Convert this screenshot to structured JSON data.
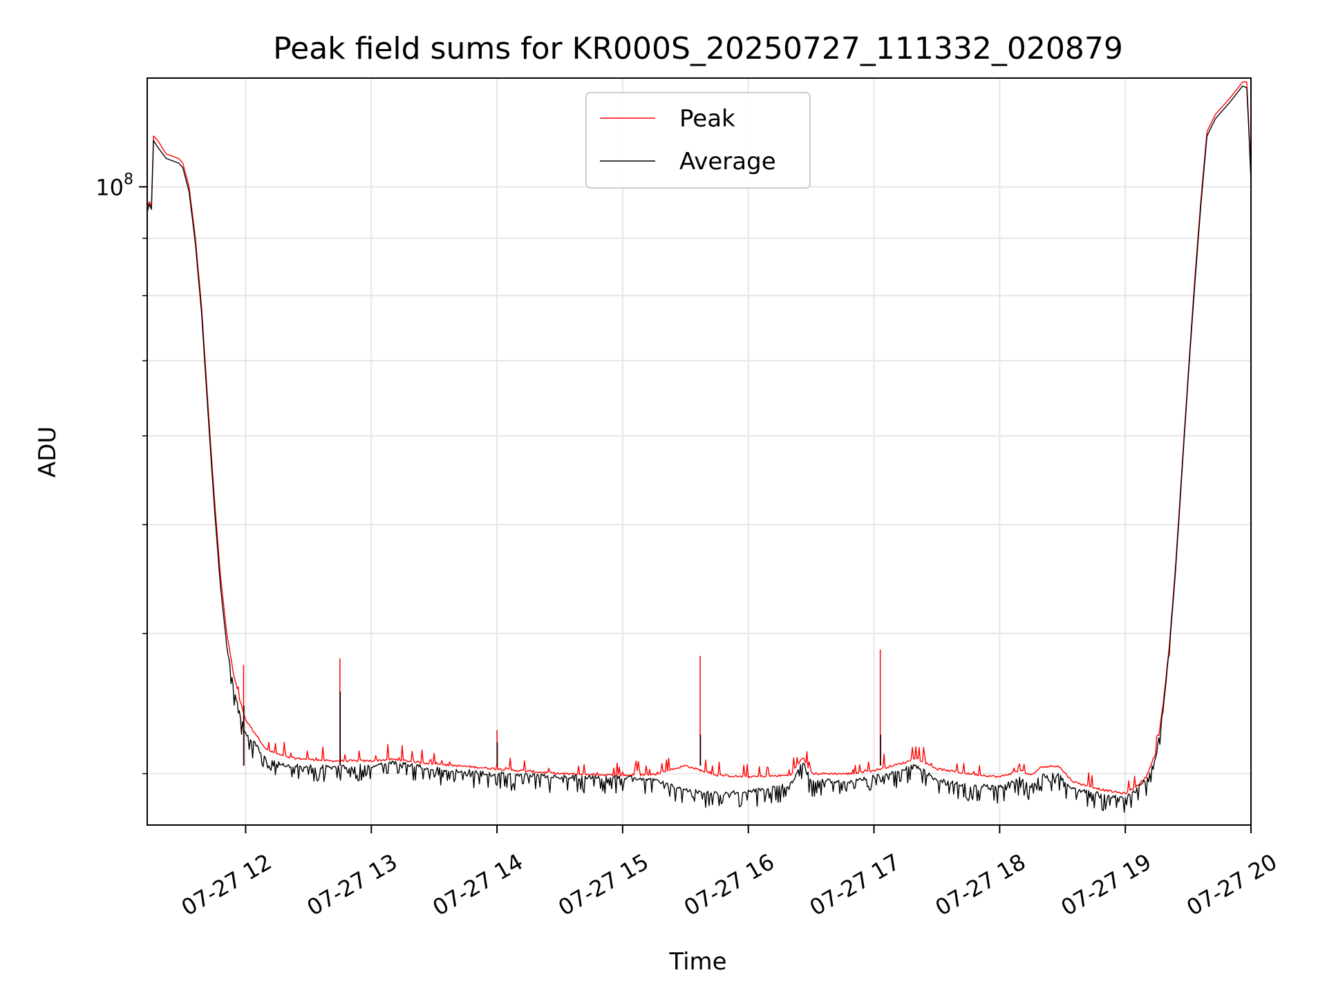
{
  "chart_data": {
    "type": "line",
    "title": "Peak field sums for KR000S_20250727_111332_020879",
    "xlabel": "Time",
    "ylabel": "ADU",
    "y_scale": "log",
    "ylim": [
      27000000,
      125000000
    ],
    "y_tick_labels": [
      {
        "value": 100000000,
        "base": "10",
        "exp": "8"
      }
    ],
    "y_minor_ticks": [
      30000000,
      40000000,
      50000000,
      60000000,
      70000000,
      80000000,
      90000000
    ],
    "xlim": [
      "2025-07-27 11:13",
      "2025-07-27 20:00"
    ],
    "x_ticks": [
      {
        "t": "2025-07-27 12:00",
        "label": "07-27 12"
      },
      {
        "t": "2025-07-27 13:00",
        "label": "07-27 13"
      },
      {
        "t": "2025-07-27 14:00",
        "label": "07-27 14"
      },
      {
        "t": "2025-07-27 15:00",
        "label": "07-27 15"
      },
      {
        "t": "2025-07-27 16:00",
        "label": "07-27 16"
      },
      {
        "t": "2025-07-27 17:00",
        "label": "07-27 17"
      },
      {
        "t": "2025-07-27 18:00",
        "label": "07-27 18"
      },
      {
        "t": "2025-07-27 19:00",
        "label": "07-27 19"
      },
      {
        "t": "2025-07-27 20:00",
        "label": "07-27 20"
      }
    ],
    "grid": true,
    "legend_position": "top-center",
    "series": [
      {
        "name": "Peak",
        "color": "#ff0000",
        "points": [
          [
            "2025-07-27 11:13",
            96000000
          ],
          [
            "2025-07-27 11:14",
            97000000
          ],
          [
            "2025-07-27 11:15",
            96000000
          ],
          [
            "2025-07-27 11:16",
            111000000
          ],
          [
            "2025-07-27 11:18",
            110000000
          ],
          [
            "2025-07-27 11:22",
            107000000
          ],
          [
            "2025-07-27 11:28",
            106000000
          ],
          [
            "2025-07-27 11:30",
            105000000
          ],
          [
            "2025-07-27 11:33",
            100000000
          ],
          [
            "2025-07-27 11:36",
            90000000
          ],
          [
            "2025-07-27 11:39",
            78000000
          ],
          [
            "2025-07-27 11:42",
            64000000
          ],
          [
            "2025-07-27 11:45",
            53000000
          ],
          [
            "2025-07-27 11:48",
            45000000
          ],
          [
            "2025-07-27 11:51",
            40000000
          ],
          [
            "2025-07-27 11:54",
            37000000
          ],
          [
            "2025-07-27 11:57",
            35000000
          ],
          [
            "2025-07-27 12:00",
            33500000
          ],
          [
            "2025-07-27 12:05",
            32500000
          ],
          [
            "2025-07-27 12:10",
            31500000
          ],
          [
            "2025-07-27 12:20",
            31000000
          ],
          [
            "2025-07-27 12:40",
            30800000
          ],
          [
            "2025-07-27 13:00",
            30800000
          ],
          [
            "2025-07-27 13:10",
            30900000
          ],
          [
            "2025-07-27 13:30",
            30600000
          ],
          [
            "2025-07-27 14:00",
            30300000
          ],
          [
            "2025-07-27 14:30",
            30000000
          ],
          [
            "2025-07-27 15:00",
            29900000
          ],
          [
            "2025-07-27 15:15",
            29950000
          ],
          [
            "2025-07-27 15:30",
            30500000
          ],
          [
            "2025-07-27 15:45",
            29900000
          ],
          [
            "2025-07-27 16:00",
            29800000
          ],
          [
            "2025-07-27 16:20",
            29900000
          ],
          [
            "2025-07-27 16:26",
            31000000
          ],
          [
            "2025-07-27 16:30",
            30000000
          ],
          [
            "2025-07-27 16:50",
            30000000
          ],
          [
            "2025-07-27 17:00",
            30200000
          ],
          [
            "2025-07-27 17:15",
            30700000
          ],
          [
            "2025-07-27 17:20",
            31000000
          ],
          [
            "2025-07-27 17:30",
            30300000
          ],
          [
            "2025-07-27 17:45",
            30000000
          ],
          [
            "2025-07-27 18:00",
            29800000
          ],
          [
            "2025-07-27 18:10",
            30200000
          ],
          [
            "2025-07-27 18:15",
            29900000
          ],
          [
            "2025-07-27 18:20",
            30400000
          ],
          [
            "2025-07-27 18:28",
            30500000
          ],
          [
            "2025-07-27 18:35",
            29500000
          ],
          [
            "2025-07-27 18:50",
            29000000
          ],
          [
            "2025-07-27 19:00",
            28800000
          ],
          [
            "2025-07-27 19:05",
            29200000
          ],
          [
            "2025-07-27 19:10",
            29800000
          ],
          [
            "2025-07-27 19:15",
            31500000
          ],
          [
            "2025-07-27 19:18",
            34500000
          ],
          [
            "2025-07-27 19:21",
            39000000
          ],
          [
            "2025-07-27 19:24",
            46000000
          ],
          [
            "2025-07-27 19:27",
            56000000
          ],
          [
            "2025-07-27 19:30",
            68000000
          ],
          [
            "2025-07-27 19:33",
            82000000
          ],
          [
            "2025-07-27 19:36",
            97000000
          ],
          [
            "2025-07-27 19:39",
            112000000
          ],
          [
            "2025-07-27 19:43",
            116000000
          ],
          [
            "2025-07-27 19:50",
            120000000
          ],
          [
            "2025-07-27 19:56",
            124000000
          ],
          [
            "2025-07-27 19:58",
            124000000
          ],
          [
            "2025-07-27 19:59",
            113000000
          ],
          [
            "2025-07-27 20:00",
            102000000
          ]
        ]
      },
      {
        "name": "Average",
        "color": "#000000",
        "points": [
          [
            "2025-07-27 11:13",
            95000000
          ],
          [
            "2025-07-27 11:14",
            96500000
          ],
          [
            "2025-07-27 11:15",
            95500000
          ],
          [
            "2025-07-27 11:16",
            110000000
          ],
          [
            "2025-07-27 11:18",
            108500000
          ],
          [
            "2025-07-27 11:22",
            106000000
          ],
          [
            "2025-07-27 11:28",
            105000000
          ],
          [
            "2025-07-27 11:30",
            104000000
          ],
          [
            "2025-07-27 11:33",
            99000000
          ],
          [
            "2025-07-27 11:36",
            89000000
          ],
          [
            "2025-07-27 11:39",
            77000000
          ],
          [
            "2025-07-27 11:42",
            63000000
          ],
          [
            "2025-07-27 11:45",
            52000000
          ],
          [
            "2025-07-27 11:48",
            44000000
          ],
          [
            "2025-07-27 11:51",
            39000000
          ],
          [
            "2025-07-27 11:54",
            36000000
          ],
          [
            "2025-07-27 11:57",
            34000000
          ],
          [
            "2025-07-27 12:00",
            32500000
          ],
          [
            "2025-07-27 12:05",
            31800000
          ],
          [
            "2025-07-27 12:10",
            30900000
          ],
          [
            "2025-07-27 12:20",
            30500000
          ],
          [
            "2025-07-27 12:40",
            30400000
          ],
          [
            "2025-07-27 13:00",
            30500000
          ],
          [
            "2025-07-27 13:10",
            30700000
          ],
          [
            "2025-07-27 13:30",
            30300000
          ],
          [
            "2025-07-27 14:00",
            30000000
          ],
          [
            "2025-07-27 14:30",
            29800000
          ],
          [
            "2025-07-27 15:00",
            29800000
          ],
          [
            "2025-07-27 15:15",
            29600000
          ],
          [
            "2025-07-27 15:30",
            29000000
          ],
          [
            "2025-07-27 15:45",
            28800000
          ],
          [
            "2025-07-27 16:00",
            28900000
          ],
          [
            "2025-07-27 16:20",
            29300000
          ],
          [
            "2025-07-27 16:26",
            30700000
          ],
          [
            "2025-07-27 16:30",
            29600000
          ],
          [
            "2025-07-27 16:50",
            29500000
          ],
          [
            "2025-07-27 17:00",
            29800000
          ],
          [
            "2025-07-27 17:15",
            30300000
          ],
          [
            "2025-07-27 17:20",
            30500000
          ],
          [
            "2025-07-27 17:30",
            29600000
          ],
          [
            "2025-07-27 17:45",
            29300000
          ],
          [
            "2025-07-27 18:00",
            29200000
          ],
          [
            "2025-07-27 18:10",
            29700000
          ],
          [
            "2025-07-27 18:15",
            29300000
          ],
          [
            "2025-07-27 18:20",
            29900000
          ],
          [
            "2025-07-27 18:28",
            29900000
          ],
          [
            "2025-07-27 18:35",
            29100000
          ],
          [
            "2025-07-27 18:50",
            28700000
          ],
          [
            "2025-07-27 19:00",
            28600000
          ],
          [
            "2025-07-27 19:05",
            29000000
          ],
          [
            "2025-07-27 19:10",
            29600000
          ],
          [
            "2025-07-27 19:15",
            31300000
          ],
          [
            "2025-07-27 19:18",
            34200000
          ],
          [
            "2025-07-27 19:21",
            38700000
          ],
          [
            "2025-07-27 19:24",
            45500000
          ],
          [
            "2025-07-27 19:27",
            55500000
          ],
          [
            "2025-07-27 19:30",
            67500000
          ],
          [
            "2025-07-27 19:33",
            81000000
          ],
          [
            "2025-07-27 19:36",
            96000000
          ],
          [
            "2025-07-27 19:39",
            111000000
          ],
          [
            "2025-07-27 19:43",
            115000000
          ],
          [
            "2025-07-27 19:50",
            119000000
          ],
          [
            "2025-07-27 19:56",
            123000000
          ],
          [
            "2025-07-27 19:58",
            122500000
          ],
          [
            "2025-07-27 19:59",
            112000000
          ],
          [
            "2025-07-27 20:00",
            101000000
          ]
        ]
      }
    ],
    "spikes": [
      {
        "t": "2025-07-27 11:59",
        "peak": 37500000,
        "average": 34500000
      },
      {
        "t": "2025-07-27 12:45",
        "peak": 38000000,
        "average": 35500000
      },
      {
        "t": "2025-07-27 14:00",
        "peak": 32800000,
        "average": 32000000
      },
      {
        "t": "2025-07-27 15:37",
        "peak": 38200000,
        "average": 32500000
      },
      {
        "t": "2025-07-27 17:03",
        "peak": 38700000,
        "average": 32500000
      }
    ]
  }
}
